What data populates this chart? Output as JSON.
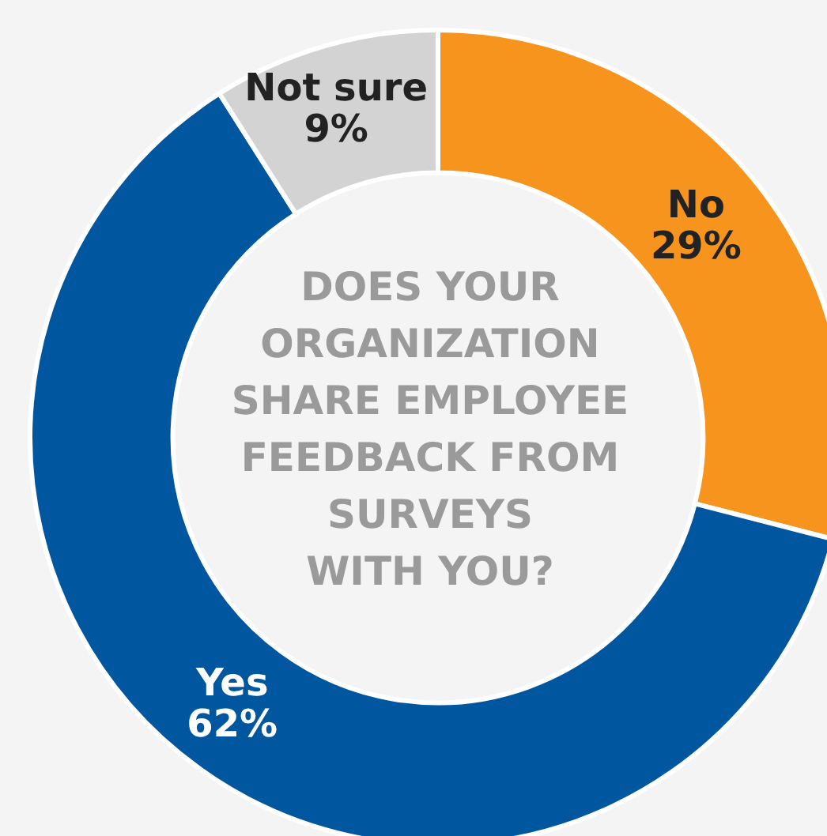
{
  "chart_data": {
    "type": "donut",
    "title": "DOES YOUR\nORGANIZATION\nSHARE EMPLOYEE\nFEEDBACK FROM\nSURVEYS\nWITH YOU?",
    "categories": [
      "No",
      "Yes",
      "Not sure"
    ],
    "values": [
      29,
      62,
      9
    ],
    "colors": [
      "#f7941d",
      "#0057a0",
      "#d3d3d3"
    ],
    "value_labels": [
      "29%",
      "62%",
      "9%"
    ]
  }
}
